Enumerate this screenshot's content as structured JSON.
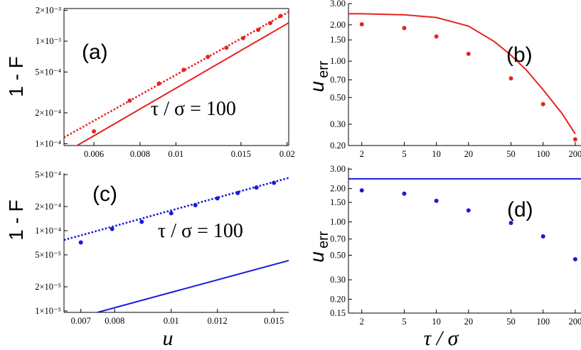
{
  "colors": {
    "red": "#e8231e",
    "blue": "#1a1adc",
    "axis": "#000000"
  },
  "labels": {
    "y_left": "1 - F",
    "y_right_main": "u",
    "y_right_sub": "err",
    "x_left": "u",
    "x_right": "τ / σ"
  },
  "chart_data": [
    {
      "panel": "a",
      "label": "(a)",
      "type": "scatter",
      "scale": {
        "x": "log",
        "y": "log"
      },
      "xlim": [
        0.00498,
        0.0202
      ],
      "ylim": [
        9.6e-05,
        0.00208
      ],
      "xticks": [
        0.006,
        0.008,
        0.01,
        0.015,
        0.02
      ],
      "xtick_labels": [
        "0.006",
        "0.008",
        "0.01",
        "0.015",
        "0.02"
      ],
      "yticks": [
        0.0001,
        0.0002,
        0.0005,
        0.001,
        0.002
      ],
      "ytick_labels": [
        "1×10⁻⁴",
        "2×10⁻⁴",
        "5×10⁻⁴",
        "1×10⁻³",
        "2×10⁻³"
      ],
      "annotation": "τ / σ = 100",
      "series": [
        {
          "name": "data",
          "style": "points",
          "color": "red",
          "x": [
            0.006,
            0.0075,
            0.009,
            0.0105,
            0.0122,
            0.0137,
            0.0152,
            0.0167,
            0.018,
            0.0192
          ],
          "y": [
            0.000132,
            0.000263,
            0.000386,
            0.000525,
            0.000703,
            0.000863,
            0.00107,
            0.00129,
            0.0015,
            0.00176
          ]
        },
        {
          "name": "fit",
          "style": "dotted",
          "color": "red",
          "x": [
            0.00498,
            0.0202
          ],
          "y": [
            0.000115,
            0.00193
          ]
        },
        {
          "name": "theory",
          "style": "solid",
          "color": "red",
          "x": [
            0.00498,
            0.0202
          ],
          "y": [
            8.1e-05,
            0.00151
          ]
        }
      ]
    },
    {
      "panel": "b",
      "label": "(b)",
      "type": "scatter",
      "scale": {
        "x": "log",
        "y": "log"
      },
      "xlim": [
        1.5,
        230
      ],
      "ylim": [
        0.2,
        3.0
      ],
      "xticks": [
        2,
        5,
        10,
        20,
        50,
        100,
        200
      ],
      "xtick_labels": [
        "2",
        "5",
        "10",
        "20",
        "50",
        "100",
        "200"
      ],
      "yticks": [
        0.2,
        0.3,
        0.5,
        0.7,
        1.0,
        1.5,
        2.0,
        3.0
      ],
      "ytick_labels": [
        "0.20",
        "0.30",
        "0.50",
        "0.70",
        "1.00",
        "1.50",
        "2.00",
        "3.00"
      ],
      "series": [
        {
          "name": "data",
          "style": "points",
          "color": "red",
          "x": [
            2,
            5,
            10,
            20,
            50,
            100,
            200
          ],
          "y": [
            2.02,
            1.88,
            1.6,
            1.15,
            0.72,
            0.44,
            0.225
          ]
        },
        {
          "name": "theory",
          "style": "solid",
          "color": "red",
          "x": [
            1.5,
            2,
            5,
            10,
            20,
            35,
            50,
            70,
            100,
            150,
            200
          ],
          "y": [
            2.47,
            2.47,
            2.42,
            2.3,
            1.95,
            1.45,
            1.12,
            0.84,
            0.58,
            0.37,
            0.25
          ]
        }
      ]
    },
    {
      "panel": "c",
      "label": "(c)",
      "type": "scatter",
      "scale": {
        "x": "log",
        "y": "log"
      },
      "xlim": [
        0.00655,
        0.0159
      ],
      "ylim": [
        9.6e-06,
        0.00052
      ],
      "xticks": [
        0.007,
        0.008,
        0.01,
        0.012,
        0.015
      ],
      "xtick_labels": [
        "0.007",
        "0.008",
        "0.01",
        "0.012",
        "0.015"
      ],
      "yticks": [
        1e-05,
        2e-05,
        5e-05,
        0.0001,
        0.0002,
        0.0005
      ],
      "ytick_labels": [
        "1×10⁻⁵",
        "2×10⁻⁵",
        "5×10⁻⁵",
        "1×10⁻⁴",
        "2×10⁻⁴",
        "5×10⁻⁴"
      ],
      "annotation": "τ / σ = 100",
      "series": [
        {
          "name": "data",
          "style": "points",
          "color": "blue",
          "x": [
            0.007,
            0.00792,
            0.0089,
            0.01,
            0.011,
            0.012,
            0.013,
            0.014,
            0.015
          ],
          "y": [
            7.13e-05,
            0.000105,
            0.000129,
            0.000165,
            0.000208,
            0.000253,
            0.000295,
            0.000345,
            0.000395
          ]
        },
        {
          "name": "fit",
          "style": "dotted",
          "color": "blue",
          "x": [
            0.00655,
            0.0159
          ],
          "y": [
            7.65e-05,
            0.000455
          ]
        },
        {
          "name": "theory",
          "style": "solid",
          "color": "blue",
          "x": [
            0.00655,
            0.0159
          ],
          "y": [
            7.4e-06,
            4.25e-05
          ]
        }
      ]
    },
    {
      "panel": "d",
      "label": "(d)",
      "type": "scatter",
      "scale": {
        "x": "log",
        "y": "log"
      },
      "xlim": [
        1.5,
        230
      ],
      "ylim": [
        0.15,
        3.1
      ],
      "xticks": [
        2,
        5,
        10,
        20,
        50,
        100,
        200
      ],
      "xtick_labels": [
        "2",
        "5",
        "10",
        "20",
        "50",
        "100",
        "200"
      ],
      "yticks": [
        0.15,
        0.2,
        0.3,
        0.5,
        0.7,
        1.0,
        1.5,
        2.0,
        3.0
      ],
      "ytick_labels": [
        "0.15",
        "0.20",
        "0.30",
        "0.50",
        "0.70",
        "1.00",
        "1.50",
        "2.00",
        "3.00"
      ],
      "series": [
        {
          "name": "data",
          "style": "points",
          "color": "blue",
          "x": [
            2,
            5,
            10,
            20,
            50,
            100,
            200
          ],
          "y": [
            1.93,
            1.8,
            1.55,
            1.27,
            0.98,
            0.74,
            0.46
          ]
        },
        {
          "name": "theory",
          "style": "solid",
          "color": "blue",
          "x": [
            1.5,
            230
          ],
          "y": [
            2.45,
            2.45
          ]
        }
      ]
    }
  ]
}
